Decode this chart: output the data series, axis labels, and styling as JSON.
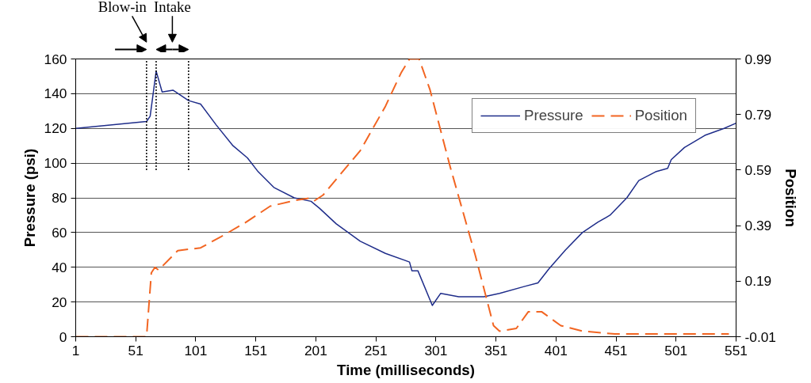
{
  "chart_data": {
    "type": "line",
    "xlabel": "Time (milliseconds)",
    "ylabel": "Pressure (psi)",
    "y2label": "Position",
    "annotations": [
      "Blow-in",
      "Intake"
    ],
    "ref_lines": [
      {
        "axis": "x",
        "value": 60,
        "label": null,
        "color": "#000000",
        "line_style": "dotted"
      },
      {
        "axis": "x",
        "value": 68,
        "label": null,
        "color": "#000000",
        "line_style": "dotted"
      },
      {
        "axis": "x",
        "value": 95,
        "label": null,
        "color": "#000000",
        "line_style": "dotted"
      }
    ],
    "series": [
      {
        "name": "Pressure",
        "color": "#1f2d8a",
        "line_style": "solid",
        "x": [
          1,
          60,
          63,
          68,
          73,
          82,
          95,
          105,
          118,
          132,
          144,
          153,
          166,
          183,
          197,
          204,
          218,
          238,
          259,
          279,
          281,
          286,
          298,
          305,
          320,
          341,
          354,
          375,
          386,
          395,
          409,
          423,
          436,
          446,
          460,
          470,
          484,
          494,
          497,
          508,
          525,
          541,
          551
        ],
        "values": [
          120,
          124,
          127,
          153,
          141,
          142,
          136,
          134,
          122,
          110,
          103,
          95,
          86,
          80,
          78,
          74,
          65,
          55,
          48,
          43,
          38,
          38,
          18,
          25,
          23,
          23,
          25,
          29,
          31,
          39,
          50,
          60,
          66,
          70,
          80,
          90,
          95,
          97,
          102,
          109,
          116,
          120,
          123
        ]
      },
      {
        "name": "Position",
        "color": "#f26522",
        "line_style": "dashed",
        "axis": "y2",
        "x": [
          1,
          60,
          64,
          67,
          70,
          86,
          105,
          122,
          142,
          163,
          183,
          197,
          200,
          207,
          238,
          259,
          272,
          279,
          287,
          296,
          313,
          334,
          349,
          354,
          368,
          378,
          389,
          405,
          423,
          450,
          545
        ],
        "values": [
          -0.01,
          -0.01,
          0.22,
          0.24,
          0.23,
          0.3,
          0.31,
          0.35,
          0.4,
          0.46,
          0.48,
          0.49,
          0.48,
          0.5,
          0.66,
          0.82,
          0.94,
          0.99,
          0.99,
          0.88,
          0.6,
          0.28,
          0.03,
          0.01,
          0.02,
          0.08,
          0.08,
          0.03,
          0.01,
          0.0,
          0.0
        ]
      }
    ],
    "xlim": [
      1,
      551
    ],
    "xticks": [
      1,
      51,
      101,
      151,
      201,
      251,
      301,
      351,
      401,
      451,
      501,
      551
    ],
    "ylim": [
      0,
      160
    ],
    "yticks": [
      0,
      20,
      40,
      60,
      80,
      100,
      120,
      140,
      160
    ],
    "y2lim": [
      -0.01,
      0.99
    ],
    "y2ticks": [
      -0.01,
      0.19,
      0.39,
      0.59,
      0.79,
      0.99
    ],
    "grid": "y",
    "legend": "top right",
    "marker": "none"
  }
}
